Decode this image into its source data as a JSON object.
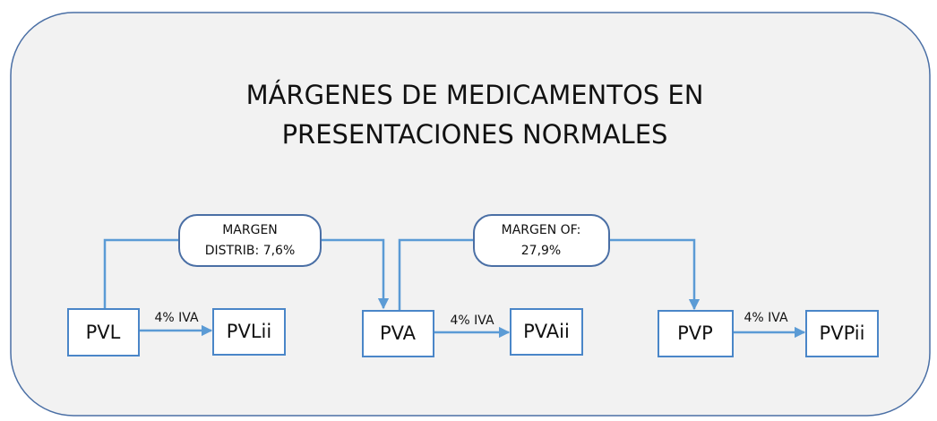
{
  "title": [
    "MÁRGENES DE MEDICAMENTOS EN",
    "PRESENTACIONES NORMALES"
  ],
  "nodes": [
    {
      "label": "PVL"
    },
    {
      "label": "PVLii"
    },
    {
      "label": "PVA"
    },
    {
      "label": "PVAii"
    },
    {
      "label": "PVP"
    },
    {
      "label": "PVPii"
    }
  ],
  "edges": [
    {
      "label": "4% IVA"
    },
    {
      "label": "4% IVA"
    },
    {
      "label": "4% IVA"
    }
  ],
  "margins": [
    {
      "lines": [
        "MARGEN",
        "DISTRIB: 7,6%"
      ]
    },
    {
      "lines": [
        "MARGEN OF:",
        "27,9%"
      ]
    }
  ]
}
